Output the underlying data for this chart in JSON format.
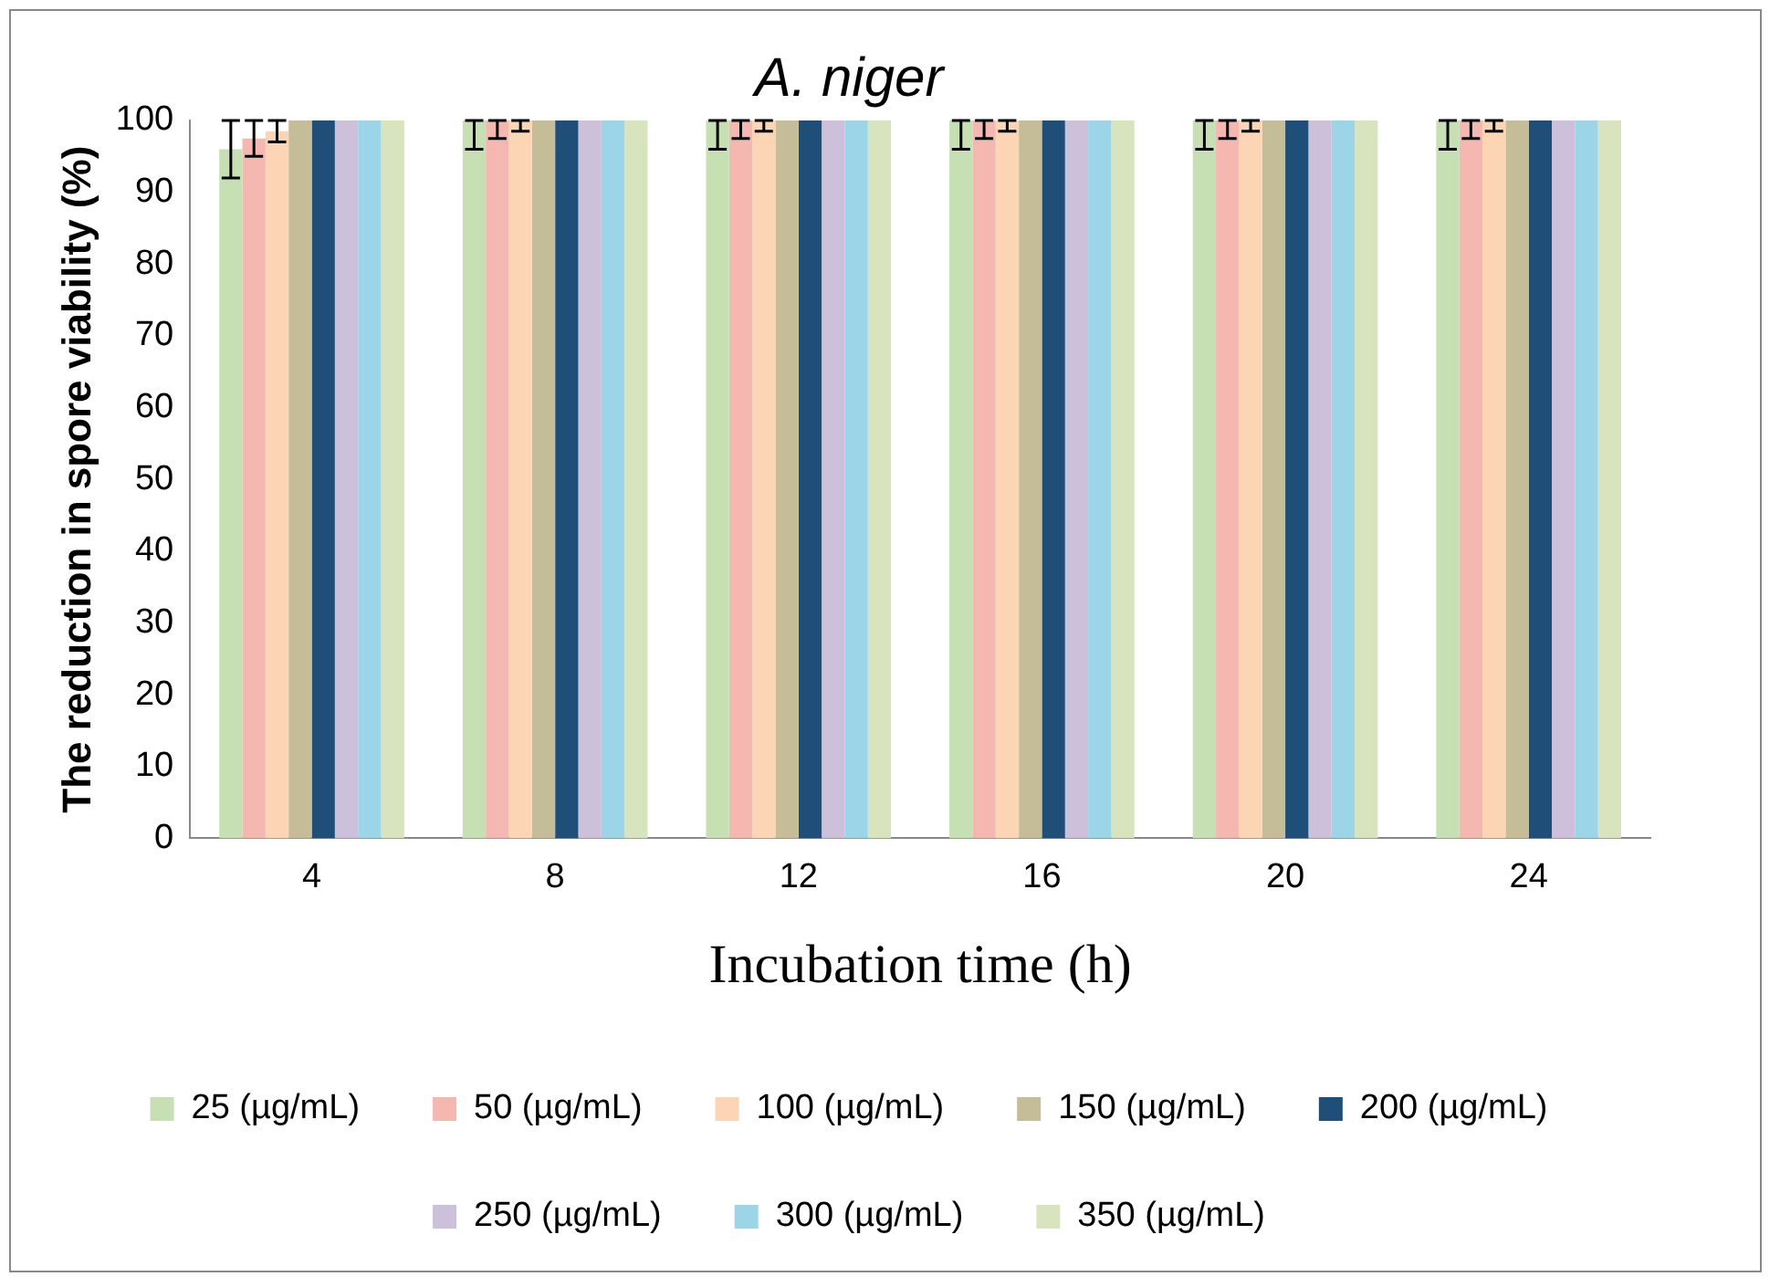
{
  "chart_data": {
    "type": "bar",
    "title": "A. niger",
    "xlabel": "Incubation time (h)",
    "ylabel": "The reduction in spore viability (%)",
    "categories": [
      "4",
      "8",
      "12",
      "16",
      "20",
      "24"
    ],
    "series": [
      {
        "name": "25 (µg/mL)",
        "color": "#c6e0b4",
        "values": [
          96,
          100,
          100,
          100,
          100,
          100
        ],
        "errors": [
          4,
          [
            96,
            100
          ],
          [
            96,
            100
          ],
          [
            96,
            100
          ],
          [
            96,
            100
          ],
          [
            96,
            100
          ]
        ]
      },
      {
        "name": "50 (µg/mL)",
        "color": "#f4b8b0",
        "values": [
          97.5,
          100,
          100,
          100,
          100,
          100
        ],
        "errors": [
          2.5,
          [
            97.5,
            100
          ],
          [
            97.5,
            100
          ],
          [
            97.5,
            100
          ],
          [
            97.5,
            100
          ],
          [
            97.5,
            100
          ]
        ]
      },
      {
        "name": "100 (µg/mL)",
        "color": "#fcd5b4",
        "values": [
          98.5,
          100,
          100,
          100,
          100,
          100
        ],
        "errors": [
          1.5,
          [
            98.5,
            100
          ],
          [
            98.5,
            100
          ],
          [
            98.5,
            100
          ],
          [
            98.5,
            100
          ],
          [
            98.5,
            100
          ]
        ]
      },
      {
        "name": "150 (µg/mL)",
        "color": "#c4bd97",
        "values": [
          100,
          100,
          100,
          100,
          100,
          100
        ]
      },
      {
        "name": "200 (µg/mL)",
        "color": "#1f4e79",
        "values": [
          100,
          100,
          100,
          100,
          100,
          100
        ]
      },
      {
        "name": "250 (µg/mL)",
        "color": "#ccc0da",
        "values": [
          100,
          100,
          100,
          100,
          100,
          100
        ]
      },
      {
        "name": "300 (µg/mL)",
        "color": "#9dd5e8",
        "values": [
          100,
          100,
          100,
          100,
          100,
          100
        ]
      },
      {
        "name": "350 (µg/mL)",
        "color": "#d7e4bd",
        "values": [
          100,
          100,
          100,
          100,
          100,
          100
        ]
      }
    ],
    "ylim": [
      0,
      100
    ],
    "yticks": [
      0,
      10,
      20,
      30,
      40,
      50,
      60,
      70,
      80,
      90,
      100
    ],
    "grid": false,
    "legend": "bottom"
  }
}
